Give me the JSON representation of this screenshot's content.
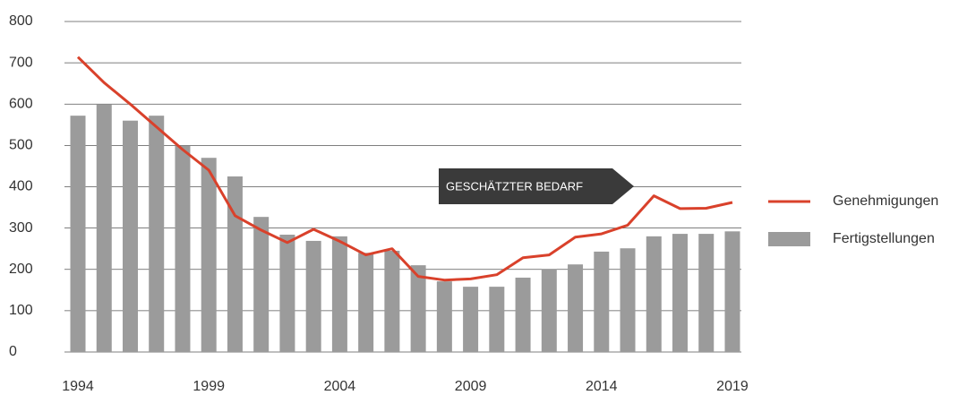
{
  "chart_data": {
    "type": "bar",
    "categories": [
      "1994",
      null,
      null,
      null,
      null,
      "1999",
      null,
      null,
      null,
      null,
      "2004",
      null,
      null,
      null,
      null,
      "2009",
      null,
      null,
      null,
      null,
      "2014",
      null,
      null,
      null,
      null,
      "2019"
    ],
    "series": [
      {
        "name": "Genehmigungen",
        "type": "line",
        "color": "#d9412b",
        "values": [
          714,
          652,
          600,
          545,
          490,
          440,
          330,
          295,
          265,
          297,
          268,
          235,
          250,
          183,
          174,
          177,
          187,
          228,
          235,
          278,
          286,
          307,
          378,
          347,
          348,
          362
        ]
      },
      {
        "name": "Fertigstellungen",
        "type": "bar",
        "color": "#9b9b9b",
        "values": [
          572,
          600,
          560,
          572,
          500,
          470,
          425,
          327,
          284,
          269,
          280,
          240,
          245,
          210,
          171,
          158,
          158,
          180,
          200,
          212,
          243,
          251,
          280,
          286,
          286,
          292
        ]
      }
    ],
    "annotation": "GESCHÄTZTER BEDARF",
    "ylim": [
      0,
      800
    ],
    "yticks": [
      0,
      100,
      200,
      300,
      400,
      500,
      600,
      700,
      800
    ],
    "grid": true,
    "legend": "right"
  }
}
